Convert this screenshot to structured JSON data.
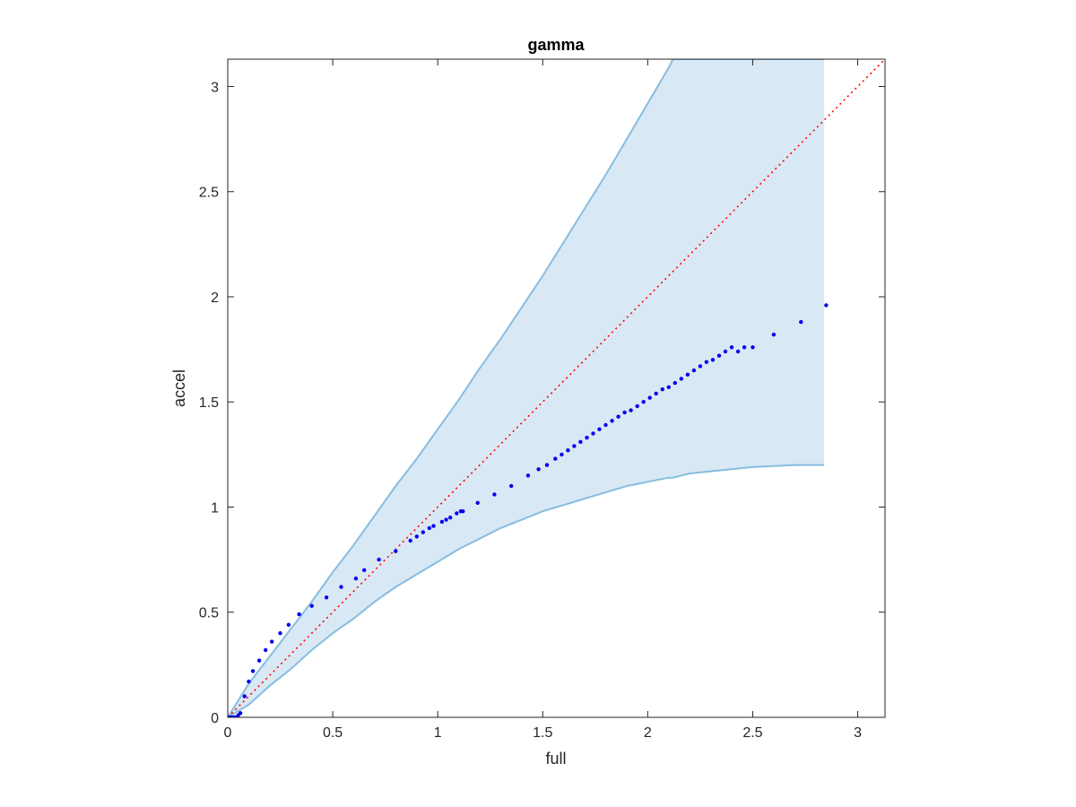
{
  "chart_data": {
    "type": "scatter",
    "title": "gamma",
    "xlabel": "full",
    "ylabel": "accel",
    "xlim": [
      0,
      3.13
    ],
    "ylim": [
      0,
      3.13
    ],
    "xticks": [
      0,
      0.5,
      1,
      1.5,
      2,
      2.5,
      3
    ],
    "yticks": [
      0,
      0.5,
      1,
      1.5,
      2,
      2.5,
      3
    ],
    "xtick_labels": [
      "0",
      "0.5",
      "1",
      "1.5",
      "2",
      "2.5",
      "3"
    ],
    "ytick_labels": [
      "0",
      "0.5",
      "1",
      "1.5",
      "2",
      "2.5",
      "3"
    ],
    "grid": false,
    "box": true,
    "colors": {
      "points": "#0000ee",
      "band_fill": "#d9e8f5",
      "band_edge": "#86bde0",
      "reference_line": "#ff0000",
      "axes": "#262626"
    },
    "reference_line": {
      "style": "dotted",
      "x": [
        0,
        3.13
      ],
      "y": [
        0,
        3.13
      ]
    },
    "band": {
      "x": [
        0,
        0.1,
        0.2,
        0.3,
        0.4,
        0.5,
        0.6,
        0.7,
        0.8,
        0.9,
        1.0,
        1.1,
        1.2,
        1.3,
        1.4,
        1.5,
        1.6,
        1.7,
        1.8,
        1.9,
        2.0,
        2.1,
        2.12,
        2.2,
        2.3,
        2.4,
        2.5,
        2.6,
        2.7,
        2.8,
        2.84
      ],
      "upper": [
        0,
        0.16,
        0.29,
        0.42,
        0.55,
        0.69,
        0.82,
        0.96,
        1.1,
        1.23,
        1.37,
        1.51,
        1.66,
        1.8,
        1.95,
        2.1,
        2.26,
        2.42,
        2.58,
        2.75,
        2.92,
        3.09,
        3.13,
        3.13,
        3.13,
        3.13,
        3.13,
        3.13,
        3.13,
        3.13,
        3.13
      ],
      "lower": [
        0,
        0.06,
        0.15,
        0.23,
        0.32,
        0.4,
        0.47,
        0.55,
        0.62,
        0.68,
        0.74,
        0.8,
        0.85,
        0.9,
        0.94,
        0.98,
        1.01,
        1.04,
        1.07,
        1.1,
        1.12,
        1.14,
        1.14,
        1.16,
        1.17,
        1.18,
        1.19,
        1.195,
        1.2,
        1.2,
        1.2
      ]
    },
    "series": [
      {
        "x": [
          0.0,
          0.01,
          0.02,
          0.03,
          0.04,
          0.05,
          0.06,
          0.08,
          0.1,
          0.12,
          0.15,
          0.18,
          0.21,
          0.25,
          0.29,
          0.34,
          0.4,
          0.47,
          0.54,
          0.61,
          0.65,
          0.72,
          0.8,
          0.87,
          0.9,
          0.93,
          0.96,
          0.98,
          1.02,
          1.04,
          1.06,
          1.09,
          1.11,
          1.12,
          1.19,
          1.27,
          1.35,
          1.43,
          1.48,
          1.52,
          1.56,
          1.59,
          1.62,
          1.65,
          1.68,
          1.71,
          1.74,
          1.77,
          1.8,
          1.83,
          1.86,
          1.89,
          1.92,
          1.95,
          1.98,
          2.01,
          2.04,
          2.07,
          2.1,
          2.13,
          2.16,
          2.19,
          2.22,
          2.25,
          2.28,
          2.31,
          2.34,
          2.37,
          2.4,
          2.43,
          2.46,
          2.5,
          2.6,
          2.73,
          2.85
        ],
        "y": [
          0.0,
          0.0,
          0.0,
          0.0,
          0.0,
          0.01,
          0.02,
          0.1,
          0.17,
          0.22,
          0.27,
          0.32,
          0.36,
          0.4,
          0.44,
          0.49,
          0.53,
          0.57,
          0.62,
          0.66,
          0.7,
          0.75,
          0.79,
          0.84,
          0.86,
          0.88,
          0.9,
          0.91,
          0.93,
          0.94,
          0.95,
          0.97,
          0.98,
          0.98,
          1.02,
          1.06,
          1.1,
          1.15,
          1.18,
          1.2,
          1.23,
          1.25,
          1.27,
          1.29,
          1.31,
          1.33,
          1.35,
          1.37,
          1.39,
          1.41,
          1.43,
          1.45,
          1.46,
          1.48,
          1.5,
          1.52,
          1.54,
          1.56,
          1.57,
          1.59,
          1.61,
          1.63,
          1.65,
          1.67,
          1.69,
          1.7,
          1.72,
          1.74,
          1.76,
          1.74,
          1.76,
          1.76,
          1.82,
          1.88,
          1.96
        ]
      }
    ]
  }
}
